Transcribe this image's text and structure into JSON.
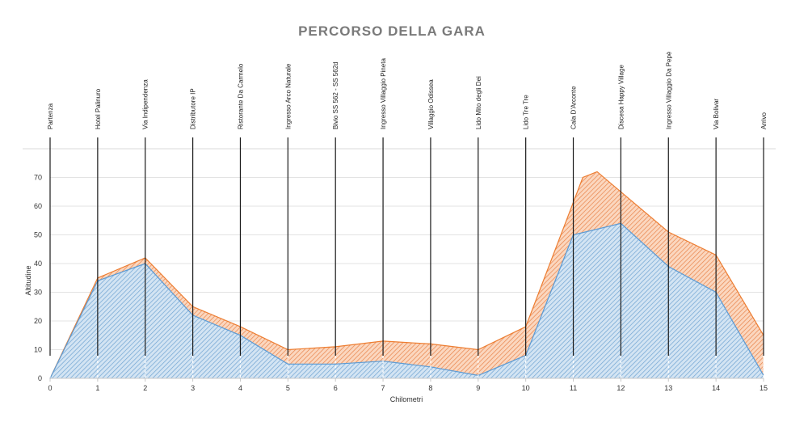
{
  "chart_data": {
    "type": "area",
    "title": "PERCORSO DELLA GARA",
    "xlabel": "Chilometri",
    "ylabel": "Altitudine",
    "xlim": [
      0,
      15
    ],
    "ylim": [
      0,
      80
    ],
    "x_ticks": [
      0,
      1,
      2,
      3,
      4,
      5,
      6,
      7,
      8,
      9,
      10,
      11,
      12,
      13,
      14,
      15
    ],
    "y_ticks": [
      0,
      10,
      20,
      30,
      40,
      50,
      60,
      70
    ],
    "grid": true,
    "legend": "none",
    "series": [
      {
        "color": "#f4a06a",
        "points": [
          [
            0,
            0
          ],
          [
            1,
            35
          ],
          [
            2,
            42
          ],
          [
            3,
            25
          ],
          [
            4,
            18
          ],
          [
            5,
            10
          ],
          [
            6,
            11
          ],
          [
            7,
            13
          ],
          [
            8,
            12
          ],
          [
            9,
            10
          ],
          [
            10,
            18
          ],
          [
            11.2,
            70
          ],
          [
            11.5,
            72
          ],
          [
            12,
            65
          ],
          [
            13,
            51
          ],
          [
            14,
            43
          ],
          [
            15,
            15
          ]
        ]
      },
      {
        "color": "#a9c8e6",
        "points": [
          [
            0,
            0
          ],
          [
            1,
            34
          ],
          [
            2,
            40
          ],
          [
            3,
            22
          ],
          [
            4,
            15
          ],
          [
            5,
            5
          ],
          [
            6,
            5
          ],
          [
            7,
            6
          ],
          [
            8,
            4
          ],
          [
            9,
            1
          ],
          [
            10,
            8
          ],
          [
            11,
            50
          ],
          [
            12,
            54
          ],
          [
            13,
            39
          ],
          [
            14,
            30
          ],
          [
            15,
            1
          ]
        ]
      }
    ],
    "locations": [
      {
        "km": 0,
        "name": "Partenza"
      },
      {
        "km": 1,
        "name": "Hotel Palinuro"
      },
      {
        "km": 2,
        "name": "Via Indipendenza"
      },
      {
        "km": 3,
        "name": "Distributore IP"
      },
      {
        "km": 4,
        "name": "Ristorante Da Carmelo"
      },
      {
        "km": 5,
        "name": "Ingresso Arco Naturale"
      },
      {
        "km": 6,
        "name": "Bivio SS 562 - SS 562d"
      },
      {
        "km": 7,
        "name": "Ingresso Villaggio Pineta"
      },
      {
        "km": 8,
        "name": "Villaggio Odissea"
      },
      {
        "km": 9,
        "name": "Lido Mito degli Dei"
      },
      {
        "km": 10,
        "name": "Lido Tre Tre"
      },
      {
        "km": 11,
        "name": "Cala D'Arconte"
      },
      {
        "km": 12,
        "name": "Discesa Happy Village"
      },
      {
        "km": 13,
        "name": "Ingresso Villaggio Da Pepè"
      },
      {
        "km": 14,
        "name": "Via Bolivar"
      },
      {
        "km": 15,
        "name": "Arrivo"
      }
    ]
  }
}
